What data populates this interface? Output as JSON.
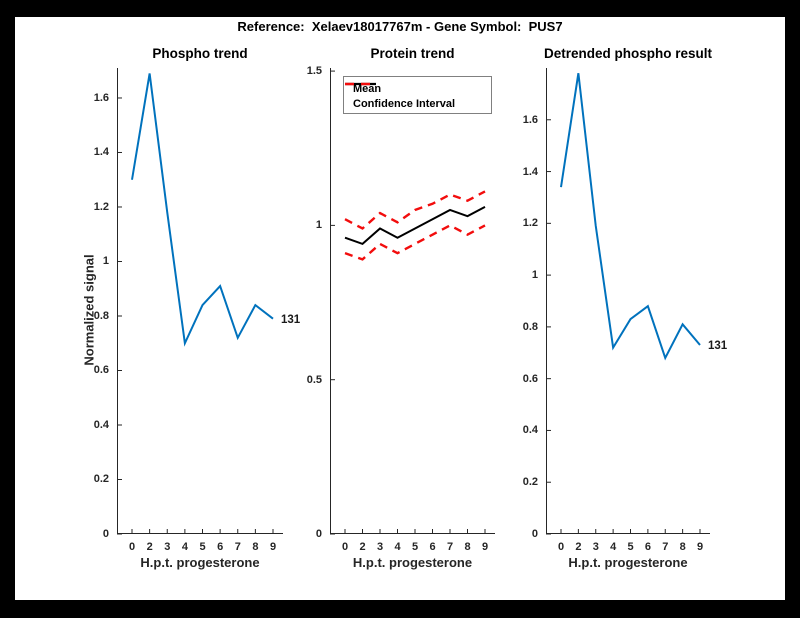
{
  "figure_title": "Reference:  Xelaev18017767m - Gene Symbol:  PUS7",
  "ylabel_text": "Normalized signal",
  "colors": {
    "line_blue": "#0072BD",
    "mean_black": "#000000",
    "ci_red": "#f20d0d",
    "axis": "#262626",
    "figure_bg": "#ffffff",
    "frame_bg": "#000000"
  },
  "chart_data": [
    {
      "type": "line",
      "title": "Phospho trend",
      "xlabel": "H.p.t. progesterone",
      "ylabel": "Normalized signal",
      "x_tick_labels": [
        "0",
        "2",
        "3",
        "4",
        "5",
        "6",
        "7",
        "8",
        "9"
      ],
      "y_ticks": [
        0,
        0.2,
        0.4,
        0.6,
        0.8,
        1,
        1.2,
        1.4,
        1.6
      ],
      "y_tick_labels": [
        "0",
        "0.2",
        "0.4",
        "0.6",
        "0.8",
        "1",
        "1.2",
        "1.4",
        "1.6"
      ],
      "ylim": [
        0,
        1.71
      ],
      "grid": false,
      "series": [
        {
          "name": "phospho-signal",
          "color": "#0072BD",
          "dash": null,
          "values": [
            1.3,
            1.69,
            1.18,
            0.7,
            0.84,
            0.91,
            0.72,
            0.84,
            0.79
          ]
        }
      ],
      "annotation": {
        "text": "131",
        "at_index": 8
      }
    },
    {
      "type": "line",
      "title": "Protein trend",
      "xlabel": "H.p.t. progesterone",
      "x_tick_labels": [
        "0",
        "2",
        "3",
        "4",
        "5",
        "6",
        "7",
        "8",
        "9"
      ],
      "y_ticks": [
        0,
        0.5,
        1,
        1.5
      ],
      "y_tick_labels": [
        "0",
        "0.5",
        "1",
        "1.5"
      ],
      "ylim": [
        0,
        1.51
      ],
      "grid": false,
      "legend": {
        "position": "top-left",
        "entries": [
          {
            "label": "Mean",
            "style": "solid-black"
          },
          {
            "label": "Confidence Interval",
            "style": "dashed-red"
          }
        ]
      },
      "series": [
        {
          "name": "ci-upper",
          "color": "#f20d0d",
          "dash": "8 6",
          "values": [
            1.02,
            0.99,
            1.04,
            1.01,
            1.05,
            1.07,
            1.1,
            1.08,
            1.11
          ]
        },
        {
          "name": "ci-lower",
          "color": "#f20d0d",
          "dash": "8 6",
          "values": [
            0.91,
            0.89,
            0.94,
            0.91,
            0.94,
            0.97,
            1.0,
            0.97,
            1.0
          ]
        },
        {
          "name": "mean",
          "color": "#000000",
          "dash": null,
          "values": [
            0.96,
            0.94,
            0.99,
            0.96,
            0.99,
            1.02,
            1.05,
            1.03,
            1.06
          ]
        }
      ]
    },
    {
      "type": "line",
      "title": "Detrended phospho result",
      "xlabel": "H.p.t. progesterone",
      "x_tick_labels": [
        "0",
        "2",
        "3",
        "4",
        "5",
        "6",
        "7",
        "8",
        "9"
      ],
      "y_ticks": [
        0,
        0.2,
        0.4,
        0.6,
        0.8,
        1,
        1.2,
        1.4,
        1.6
      ],
      "y_tick_labels": [
        "0",
        "0.2",
        "0.4",
        "0.6",
        "0.8",
        "1",
        "1.2",
        "1.4",
        "1.6"
      ],
      "ylim": [
        0,
        1.8
      ],
      "grid": false,
      "series": [
        {
          "name": "detrended-phospho",
          "color": "#0072BD",
          "dash": null,
          "values": [
            1.34,
            1.78,
            1.19,
            0.72,
            0.83,
            0.88,
            0.68,
            0.81,
            0.73
          ]
        }
      ],
      "annotation": {
        "text": "131",
        "at_index": 8
      }
    }
  ]
}
